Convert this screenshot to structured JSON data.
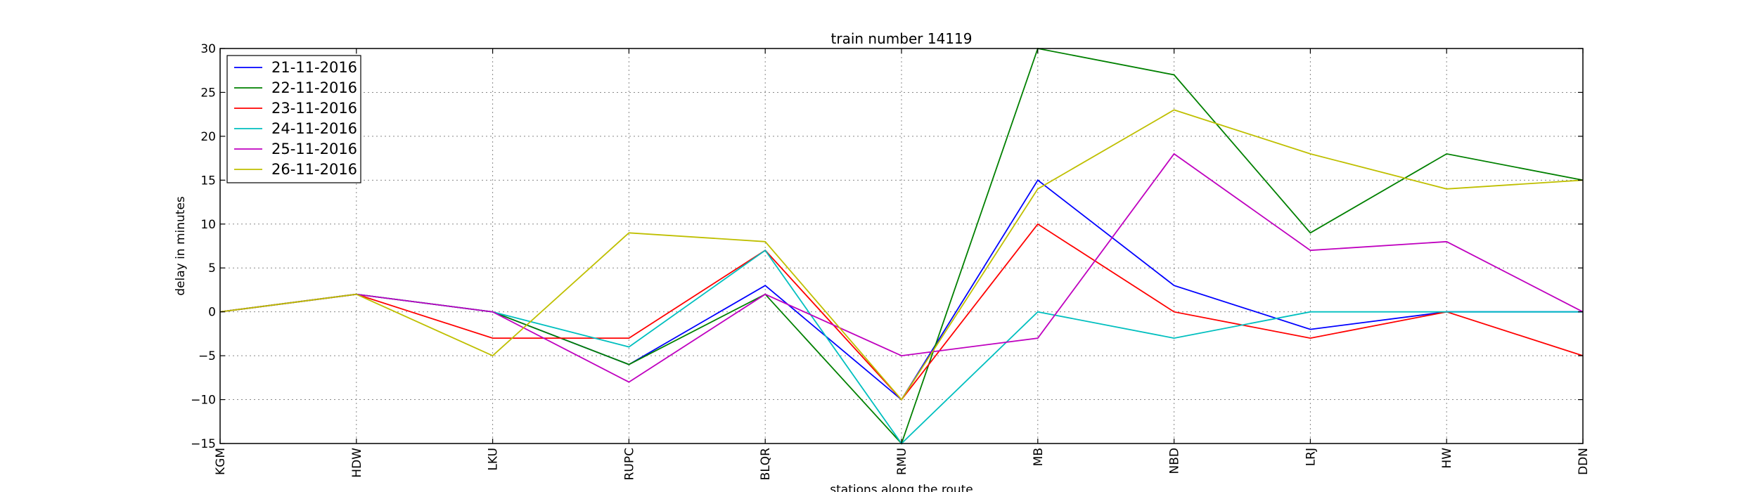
{
  "chart_data": {
    "type": "line",
    "title": "train number 14119",
    "xlabel": "stations along the route",
    "ylabel": "delay in minutes",
    "categories": [
      "KGM",
      "HDW",
      "LKU",
      "RUPC",
      "BLQR",
      "RMU",
      "MB",
      "NBD",
      "LRJ",
      "HW",
      "DDN"
    ],
    "ylim": [
      -15,
      30
    ],
    "yticks": [
      -15,
      -10,
      -5,
      0,
      5,
      10,
      15,
      20,
      25,
      30
    ],
    "grid": true,
    "legend_position": "top-left",
    "series": [
      {
        "name": "21-11-2016",
        "color": "#0000ff",
        "values": [
          0,
          2,
          0,
          -6,
          3,
          -10,
          15,
          3,
          -2,
          0,
          0
        ]
      },
      {
        "name": "22-11-2016",
        "color": "#008000",
        "values": [
          0,
          2,
          0,
          -6,
          2,
          -15,
          30,
          27,
          9,
          18,
          15
        ]
      },
      {
        "name": "23-11-2016",
        "color": "#ff0000",
        "values": [
          0,
          2,
          -3,
          -3,
          7,
          -10,
          10,
          0,
          -3,
          0,
          -5
        ]
      },
      {
        "name": "24-11-2016",
        "color": "#00bfbf",
        "values": [
          0,
          2,
          0,
          -4,
          7,
          -15,
          0,
          -3,
          0,
          0,
          0
        ]
      },
      {
        "name": "25-11-2016",
        "color": "#bf00bf",
        "values": [
          0,
          2,
          0,
          -8,
          2,
          -5,
          -3,
          18,
          7,
          8,
          0
        ]
      },
      {
        "name": "26-11-2016",
        "color": "#bfbf00",
        "values": [
          0,
          2,
          -5,
          9,
          8,
          -10,
          14,
          23,
          18,
          14,
          15
        ]
      }
    ]
  }
}
